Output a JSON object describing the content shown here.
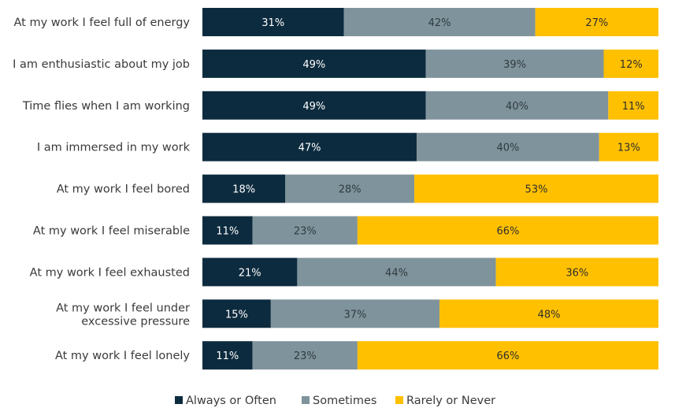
{
  "chart_data": {
    "type": "bar",
    "orientation": "horizontal",
    "stacked": true,
    "categories": [
      "At my work I feel full of energy",
      "I am enthusiastic about my job",
      "Time flies when I am working",
      "I am immersed in my work",
      "At my work I feel bored",
      "At my work I feel miserable",
      "At my work I feel exhausted",
      "At my work I feel under excessive pressure",
      "At my work I feel lonely"
    ],
    "series": [
      {
        "name": "Always or Often",
        "color": "#0d2b3e",
        "label_color": "#ffffff",
        "values": [
          31,
          49,
          49,
          47,
          18,
          11,
          21,
          15,
          11
        ]
      },
      {
        "name": "Sometimes",
        "color": "#7f939c",
        "label_color": "#2f3b40",
        "values": [
          42,
          39,
          40,
          40,
          28,
          23,
          44,
          37,
          23
        ]
      },
      {
        "name": "Rarely or Never",
        "color": "#ffc000",
        "label_color": "#2f2f2f",
        "values": [
          27,
          12,
          11,
          13,
          53,
          66,
          36,
          48,
          66
        ]
      }
    ],
    "value_suffix": "%",
    "legend_position": "bottom",
    "grid": false
  }
}
